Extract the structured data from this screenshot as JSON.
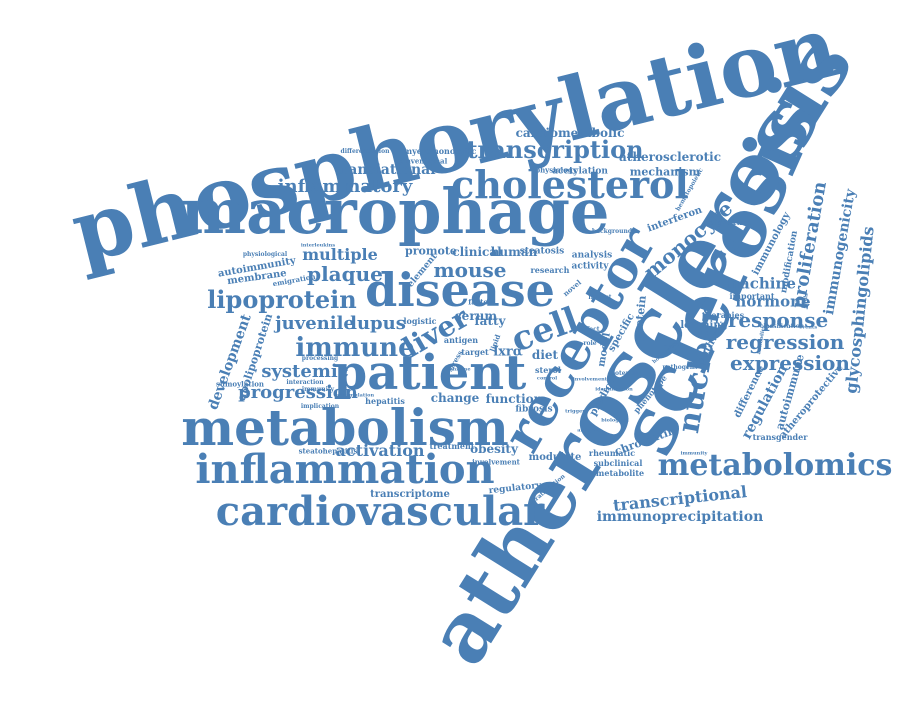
{
  "colors": {
    "word": "#4a7fb5",
    "background": "#ffffff"
  },
  "words": [
    "phosphorylation",
    "sclerosis",
    "atherosclerosis",
    "macrophage",
    "receptor",
    "cholesterol",
    "disease",
    "metabolism",
    "patient",
    "inflammation",
    "cardiovascular",
    "metabolomics",
    "transcription",
    "inflammatory",
    "lipoprotein",
    "nuclear",
    "cell",
    "liver",
    "immune",
    "systemic",
    "juvenile",
    "lupus",
    "mouse",
    "plaque",
    "multiple",
    "progression",
    "activation",
    "expression",
    "regression",
    "response",
    "hormone",
    "proliferation",
    "machine",
    "monocyte",
    "immunogenicity",
    "glycosphingolipids",
    "transcriptional",
    "immunoprecipitation",
    "regulation",
    "development",
    "apolipoprotein",
    "translational",
    "cardiometabolic",
    "atherosclerotic",
    "mechanism",
    "acetylation",
    "myelomonocytic",
    "conventional",
    "physiology",
    "interferon",
    "signature",
    "immunology",
    "modification",
    "important",
    "classification",
    "therapies",
    "learning",
    "pathway",
    "difference",
    "autoimmune",
    "atheroprotective",
    "transgender",
    "chromatin",
    "metabolite",
    "subclinical",
    "rheumatic",
    "modulate",
    "obesity",
    "involvement",
    "treatment",
    "steatohepatitis",
    "transcriptome",
    "regulatory",
    "stratification",
    "change",
    "function",
    "fibrosis",
    "hepatitis",
    "implication",
    "sumoylation",
    "accumulation",
    "interaction",
    "immunity",
    "processing",
    "emigration",
    "autoimmunity",
    "membrane",
    "physiological",
    "interleukins",
    "element",
    "promote",
    "clinical",
    "human",
    "steatosis",
    "analysis",
    "activity",
    "research",
    "novel",
    "impact",
    "potential",
    "model",
    "specific",
    "protein",
    "predict",
    "phenotype",
    "pathogens",
    "biological",
    "background",
    "sterol",
    "control",
    "antigen",
    "stress",
    "target",
    "diet",
    "lxrα",
    "serum",
    "fatty",
    "factor",
    "logistic",
    "role",
    "lipid",
    "enzyme",
    "effect",
    "differentiation",
    "hematopoietic",
    "involvement",
    "identification",
    "homeostasis",
    "antibodies",
    "lipids",
    "events",
    "trigger",
    "antigen",
    "immunity",
    "metabolite"
  ]
}
